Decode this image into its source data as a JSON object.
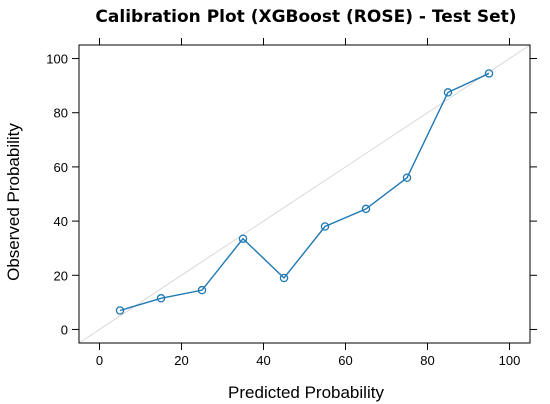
{
  "chart_data": {
    "type": "line",
    "title": "Calibration Plot (XGBoost (ROSE) - Test Set)",
    "xlabel": "Predicted Probability",
    "ylabel": "Observed Probability",
    "xlim": [
      -5,
      105
    ],
    "ylim": [
      -5,
      105
    ],
    "xticks": [
      0,
      20,
      40,
      60,
      80,
      100
    ],
    "yticks": [
      0,
      20,
      40,
      60,
      80,
      100
    ],
    "reference_line": "diagonal y = x",
    "grid": false,
    "series": [
      {
        "color": "#1f78b4",
        "marker": "open-circle",
        "points": [
          {
            "x": 5,
            "y": 7
          },
          {
            "x": 15,
            "y": 11.5
          },
          {
            "x": 25,
            "y": 14.5
          },
          {
            "x": 35,
            "y": 33.5
          },
          {
            "x": 45,
            "y": 19
          },
          {
            "x": 55,
            "y": 38
          },
          {
            "x": 65,
            "y": 44.5
          },
          {
            "x": 75,
            "y": 56
          },
          {
            "x": 85,
            "y": 87.5
          },
          {
            "x": 95,
            "y": 94.5
          }
        ]
      }
    ],
    "colors": {
      "diagonal": "#d9d9d9",
      "frame": "#000000"
    }
  }
}
